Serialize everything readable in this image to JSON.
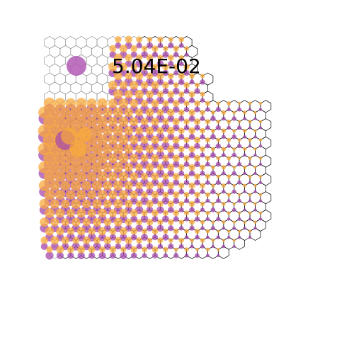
{
  "legend": {
    "value_text": "5.04E-02",
    "marker_color": "#b15bb5"
  },
  "colors": {
    "purple": "#a548ad",
    "orange": "#f9ab3c",
    "line_dark": "#000000",
    "line_light": "#8a8a8a"
  }
}
